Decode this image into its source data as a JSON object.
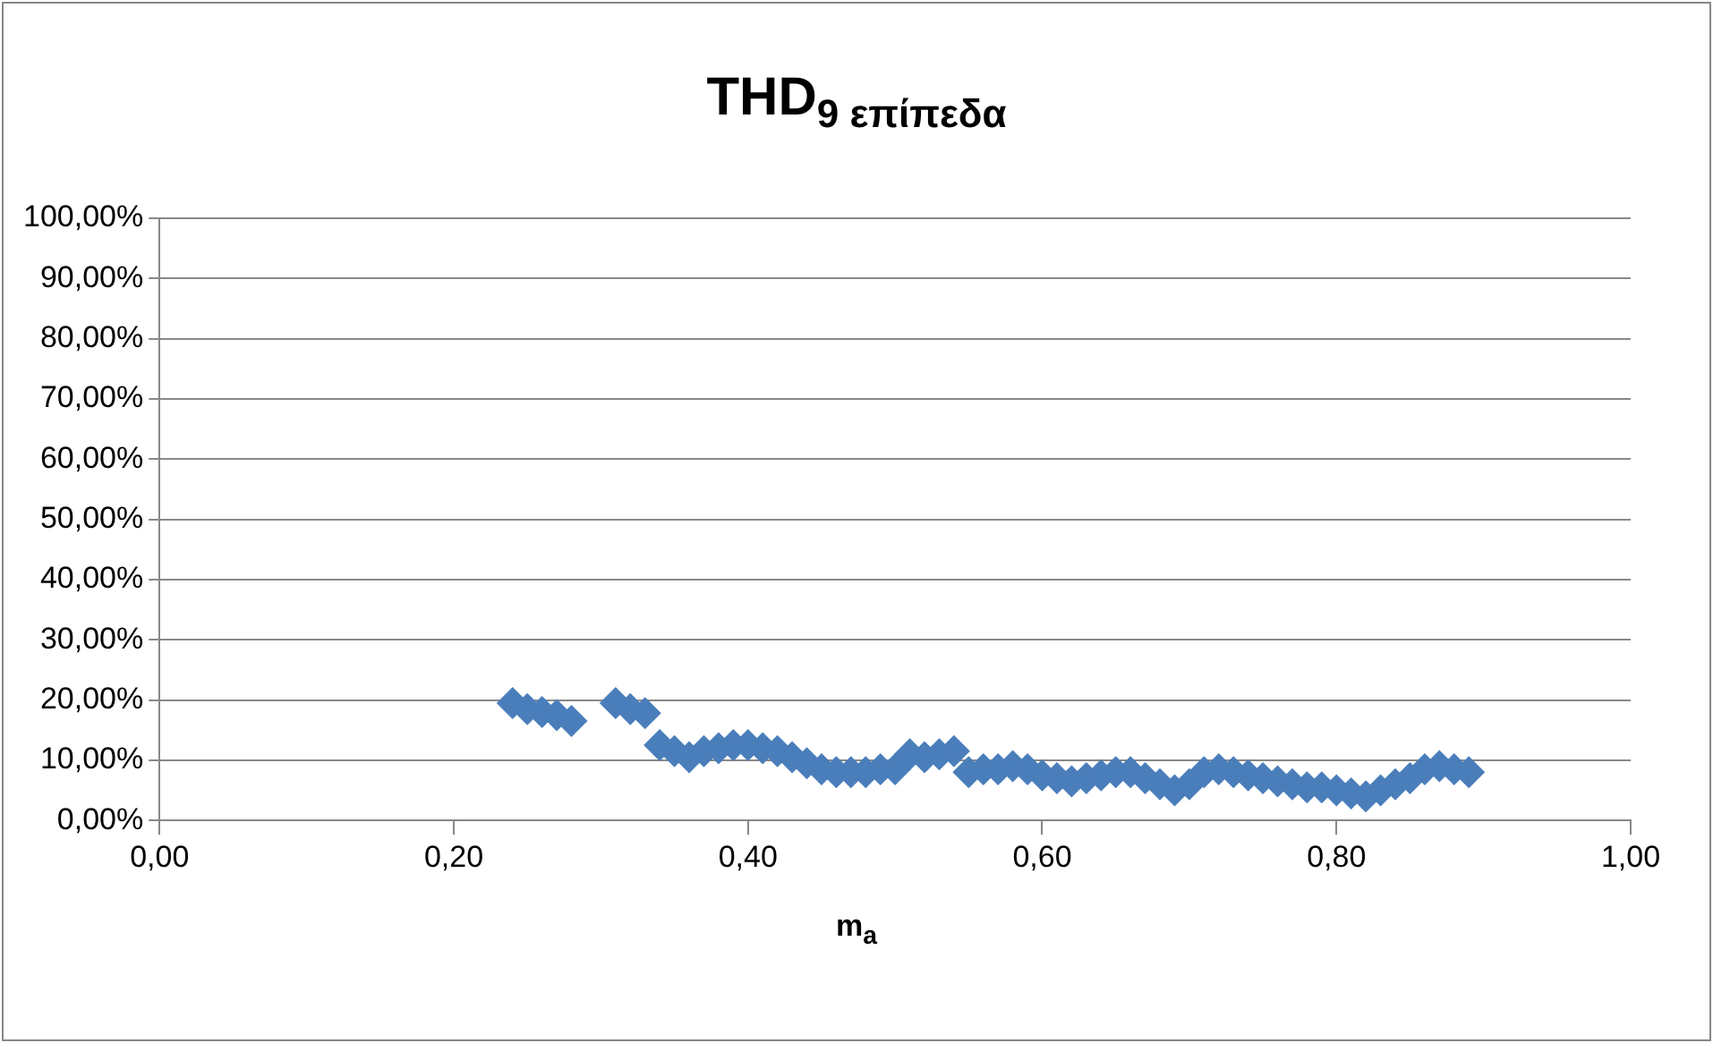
{
  "chart_data": {
    "type": "scatter",
    "title": "THD$_{9 επίπεδα}$",
    "xlabel": "m$_{a}$",
    "x": [
      0.24,
      0.25,
      0.26,
      0.27,
      0.28,
      0.31,
      0.32,
      0.33,
      0.34,
      0.35,
      0.36,
      0.37,
      0.38,
      0.39,
      0.4,
      0.41,
      0.42,
      0.43,
      0.44,
      0.45,
      0.46,
      0.47,
      0.48,
      0.49,
      0.5,
      0.51,
      0.52,
      0.53,
      0.54,
      0.55,
      0.56,
      0.57,
      0.58,
      0.59,
      0.6,
      0.61,
      0.62,
      0.63,
      0.64,
      0.65,
      0.66,
      0.67,
      0.68,
      0.69,
      0.7,
      0.71,
      0.72,
      0.73,
      0.74,
      0.75,
      0.76,
      0.77,
      0.78,
      0.79,
      0.8,
      0.81,
      0.82,
      0.83,
      0.84,
      0.85,
      0.86,
      0.87,
      0.88,
      0.89
    ],
    "series": [
      {
        "color": "#4a7ebb",
        "values": [
          19.5,
          18.5,
          18,
          17.5,
          16.5,
          19.5,
          18.5,
          17.8,
          12.5,
          11.5,
          10.5,
          11.5,
          12,
          12.5,
          12.5,
          12,
          11.5,
          10.5,
          9.5,
          8.5,
          8,
          8,
          8,
          8.5,
          8.5,
          11,
          10.5,
          11,
          11.5,
          8,
          8.5,
          8.5,
          9,
          8.5,
          7.5,
          7,
          6.5,
          7,
          7.5,
          8,
          8,
          7,
          6,
          5,
          6,
          8,
          8.5,
          8,
          7.5,
          7,
          6.5,
          6,
          5.5,
          5.5,
          5,
          4.5,
          4,
          5,
          6,
          7,
          8.5,
          9,
          8.5,
          8
        ]
      }
    ],
    "xlim": [
      0,
      1
    ],
    "ylim": [
      0,
      100
    ],
    "xticks": [
      {
        "value": 0,
        "label": "0,00"
      },
      {
        "value": 0.2,
        "label": "0,20"
      },
      {
        "value": 0.4,
        "label": "0,40"
      },
      {
        "value": 0.6,
        "label": "0,60"
      },
      {
        "value": 0.8,
        "label": "0,80"
      },
      {
        "value": 1,
        "label": "1,00"
      }
    ],
    "yticks": [
      {
        "value": 0,
        "label": "0,00%"
      },
      {
        "value": 10,
        "label": "10,00%"
      },
      {
        "value": 20,
        "label": "20,00%"
      },
      {
        "value": 30,
        "label": "30,00%"
      },
      {
        "value": 40,
        "label": "40,00%"
      },
      {
        "value": 50,
        "label": "50,00%"
      },
      {
        "value": 60,
        "label": "60,00%"
      },
      {
        "value": 70,
        "label": "70,00%"
      },
      {
        "value": 80,
        "label": "80,00%"
      },
      {
        "value": 90,
        "label": "90,00%"
      },
      {
        "value": 100,
        "label": "100,00%"
      }
    ],
    "grid": "y",
    "marker": "diamond"
  }
}
